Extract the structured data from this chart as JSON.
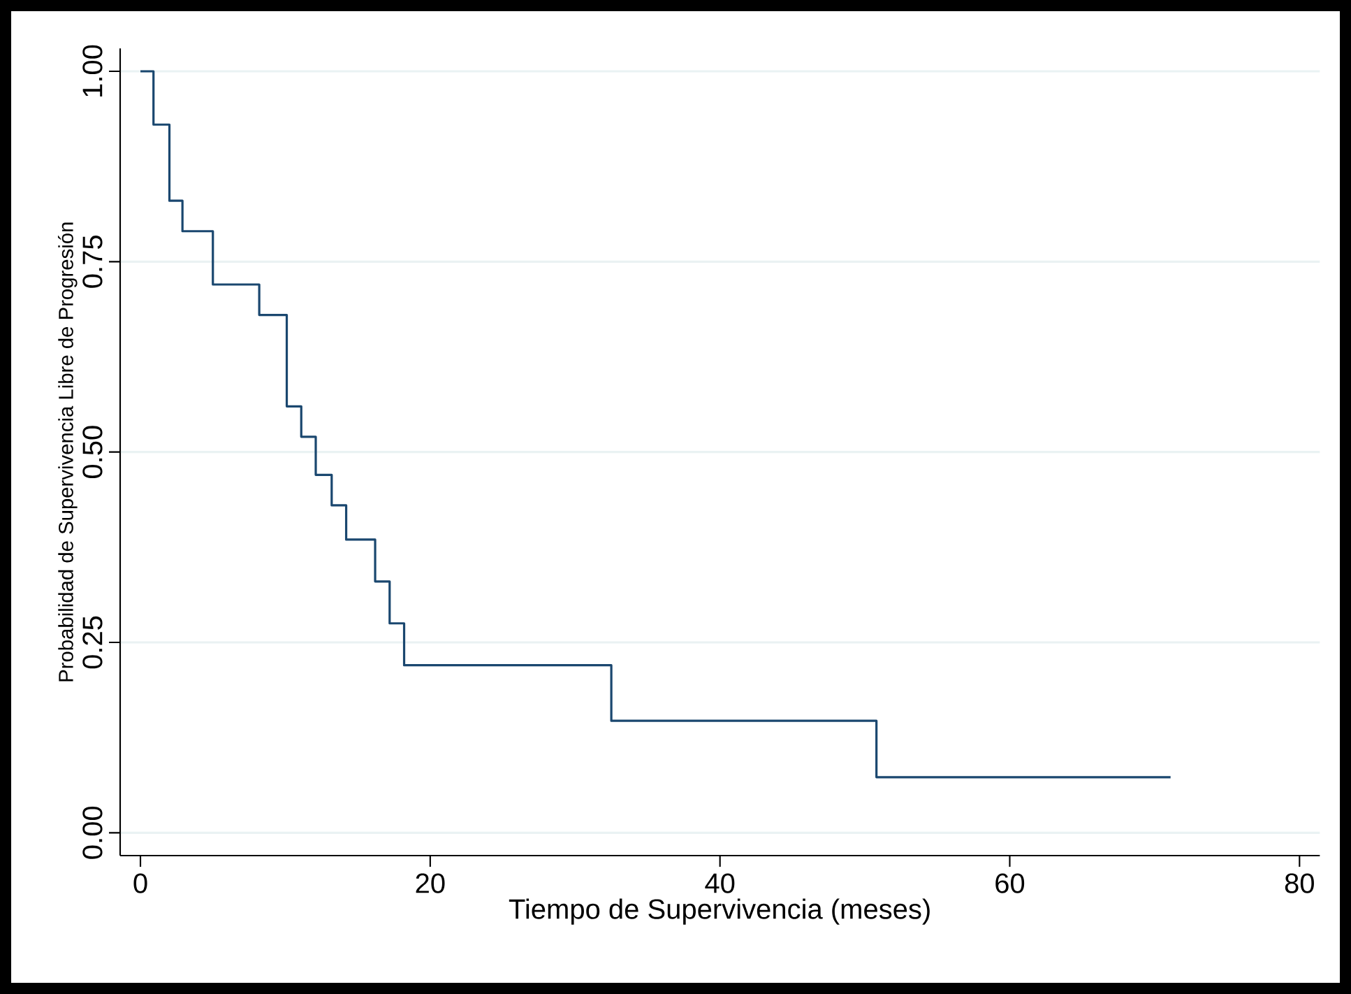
{
  "chart_data": {
    "type": "step",
    "xlabel": "Tiempo de Supervivencia (meses)",
    "ylabel": "Probabilidad de Supervivencia Libre de Progresión",
    "x": [
      0,
      0.9,
      2.0,
      2.9,
      5.0,
      8.2,
      10.1,
      11.1,
      12.1,
      13.2,
      14.2,
      16.2,
      17.2,
      18.2,
      32.5,
      50.8,
      71.1
    ],
    "values": [
      1.0,
      0.93,
      0.83,
      0.79,
      0.72,
      0.68,
      0.56,
      0.52,
      0.47,
      0.43,
      0.385,
      0.33,
      0.275,
      0.22,
      0.147,
      0.073,
      0.073
    ],
    "color": "#1a476f",
    "xlim": [
      -1.4,
      81.4
    ],
    "ylim": [
      -0.03,
      1.03
    ],
    "xticks": [
      0,
      20,
      40,
      60,
      80
    ],
    "yticks": [
      {
        "value": 0,
        "label": "0.00"
      },
      {
        "value": 0.25,
        "label": "0.25"
      },
      {
        "value": 0.5,
        "label": "0.50"
      },
      {
        "value": 0.75,
        "label": "0.75"
      },
      {
        "value": 1,
        "label": "1.00"
      }
    ],
    "grid": "y"
  }
}
